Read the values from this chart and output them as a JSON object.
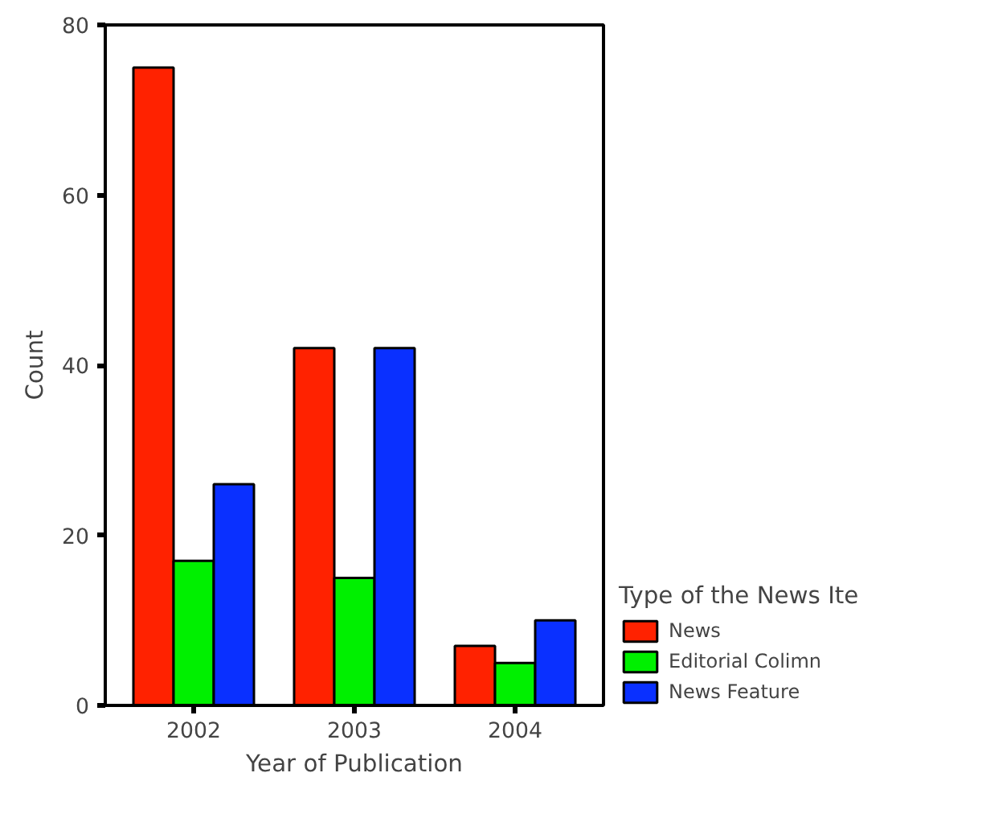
{
  "chart_data": {
    "type": "bar",
    "categories": [
      "2002",
      "2003",
      "2004"
    ],
    "xlabel": "Year of Publication",
    "ylabel": "Count",
    "legend_title": "Type of the News Ite",
    "legend": "right",
    "ylim": [
      0,
      80
    ],
    "yticks": [
      0,
      20,
      40,
      60,
      80
    ],
    "grid": false,
    "series": [
      {
        "name": "News",
        "color": "#ff2200",
        "values": [
          75,
          42,
          7
        ]
      },
      {
        "name": "Editorial Colimn",
        "color": "#00f000",
        "values": [
          17,
          15,
          5
        ]
      },
      {
        "name": "News Feature",
        "color": "#0a30ff",
        "values": [
          26,
          42,
          10
        ]
      }
    ]
  }
}
